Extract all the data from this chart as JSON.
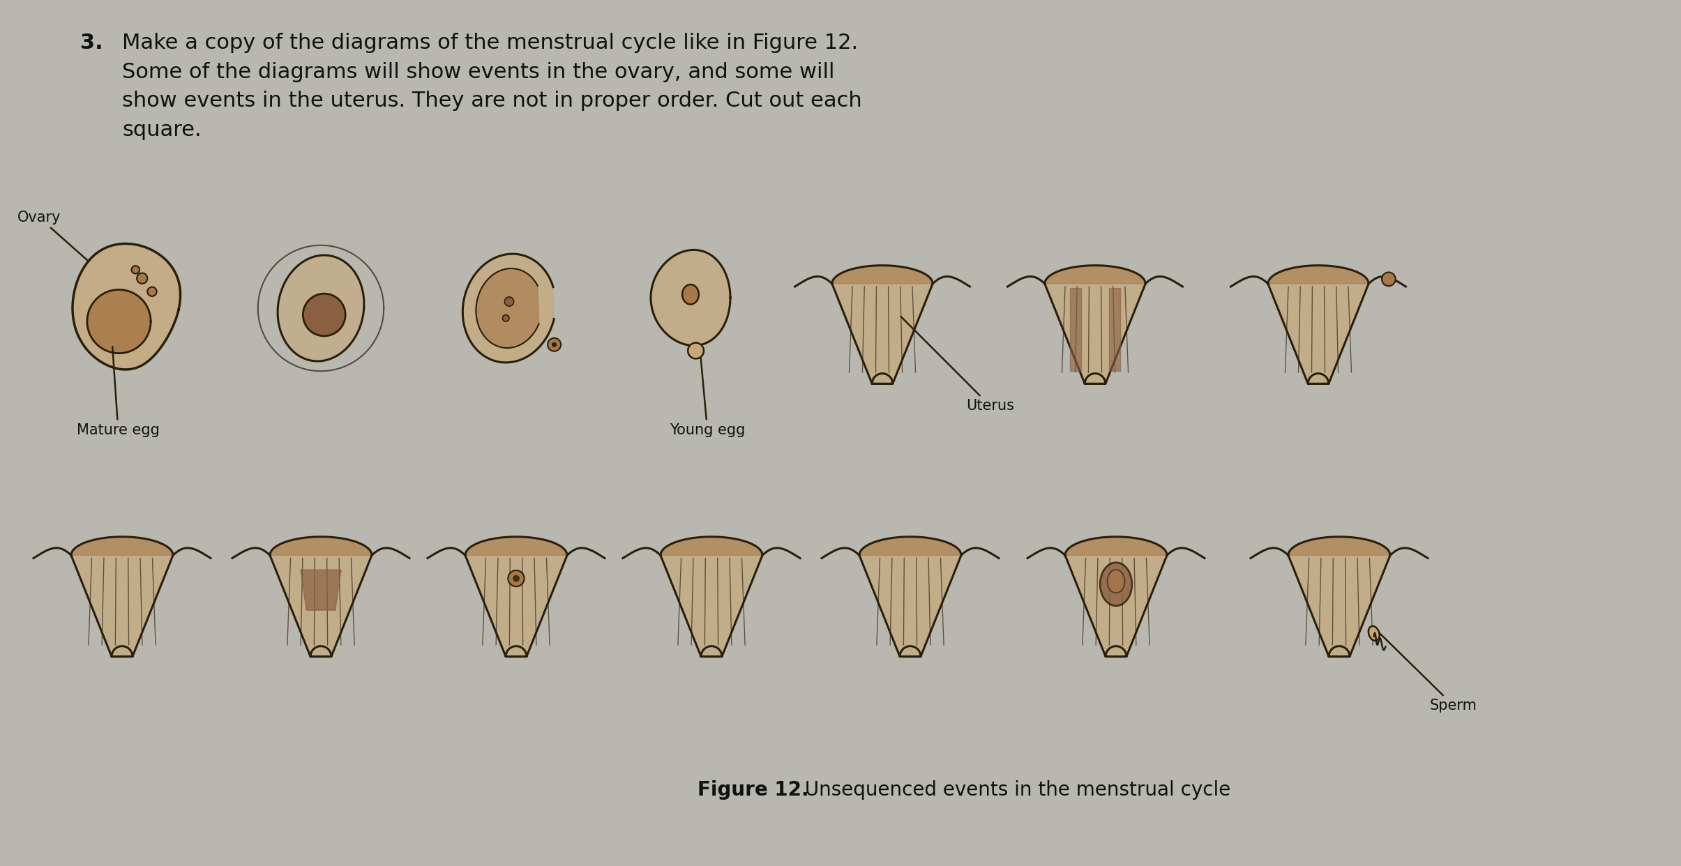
{
  "background_color": "#b8b8b0",
  "title_number": "3.",
  "title_text": "Make a copy of the diagrams of the menstrual cycle like in Figure 12.\nSome of the diagrams will show events in the ovary, and some will\nshow events in the uterus. They are not in proper order. Cut out each\nsquare.",
  "figure_caption_bold": "Figure 12.",
  "figure_caption_rest": " Unsequenced events in the menstrual cycle",
  "ovary_label": "Ovary",
  "mature_egg_label": "Mature egg",
  "young_egg_label": "Young egg",
  "uterus_label": "Uterus",
  "sperm_label": "Sperm",
  "draw_color": "#2a1f0a",
  "fill_light": "#c8a878",
  "fill_dark": "#8a6040",
  "fill_mid": "#a87848",
  "title_fontsize": 22,
  "label_fontsize": 15,
  "caption_fontsize": 20,
  "fig_width": 24.1,
  "fig_height": 12.42,
  "dpi": 100
}
